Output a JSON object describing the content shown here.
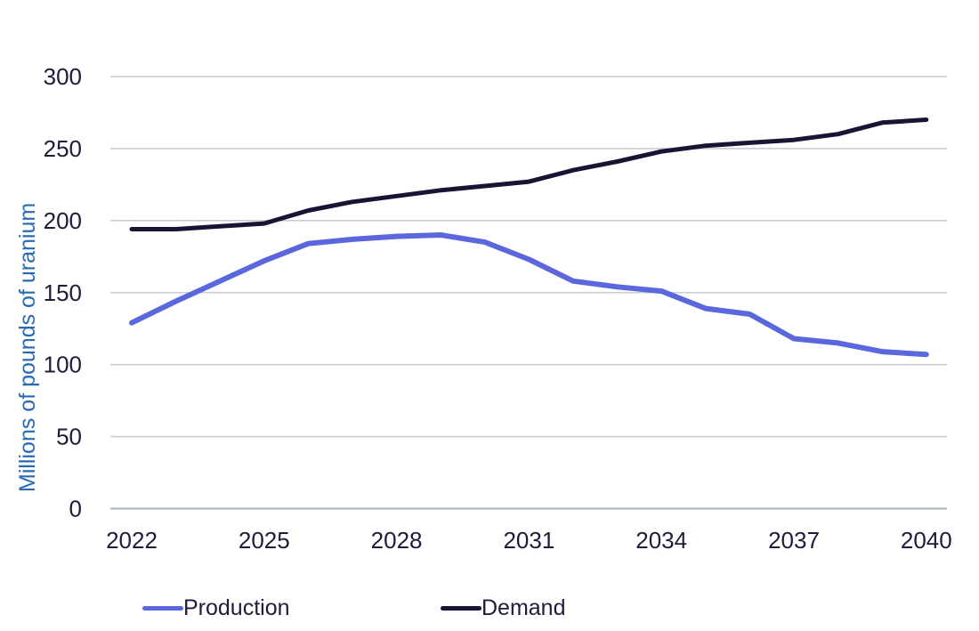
{
  "page": {
    "background_color": "#FFFFFF"
  },
  "chart_data": {
    "type": "line",
    "title": "",
    "xlabel": "",
    "ylabel": "Millions of pounds of uranium",
    "x": [
      2022,
      2023,
      2024,
      2025,
      2026,
      2027,
      2028,
      2029,
      2030,
      2031,
      2032,
      2033,
      2034,
      2035,
      2036,
      2037,
      2038,
      2039,
      2040
    ],
    "x_tick_labels": [
      "2022",
      "2025",
      "2028",
      "2031",
      "2034",
      "2037",
      "2040"
    ],
    "x_tick_values": [
      2022,
      2025,
      2028,
      2031,
      2034,
      2037,
      2040
    ],
    "y_tick_labels": [
      "0",
      "50",
      "100",
      "150",
      "200",
      "250",
      "300"
    ],
    "y_tick_values": [
      0,
      50,
      100,
      150,
      200,
      250,
      300
    ],
    "ylim": [
      0,
      300
    ],
    "xlim": [
      2022,
      2040
    ],
    "grid": "horizontal-only",
    "legend_position": "bottom",
    "series": [
      {
        "name": "Production",
        "color": "#5B67DD",
        "values": [
          129,
          144,
          158,
          172,
          184,
          187,
          189,
          190,
          185,
          173,
          158,
          154,
          151,
          139,
          135,
          118,
          115,
          109,
          107
        ]
      },
      {
        "name": "Demand",
        "color": "#171533",
        "values": [
          194,
          194,
          196,
          198,
          207,
          213,
          217,
          221,
          224,
          227,
          235,
          241,
          248,
          252,
          254,
          256,
          260,
          268,
          270
        ]
      }
    ],
    "colors": {
      "tick_text": "#1E1C3A",
      "ylabel_text": "#2A6AB3",
      "gridline": "#C9CED2",
      "axis_line": "#AAB4BA"
    }
  }
}
